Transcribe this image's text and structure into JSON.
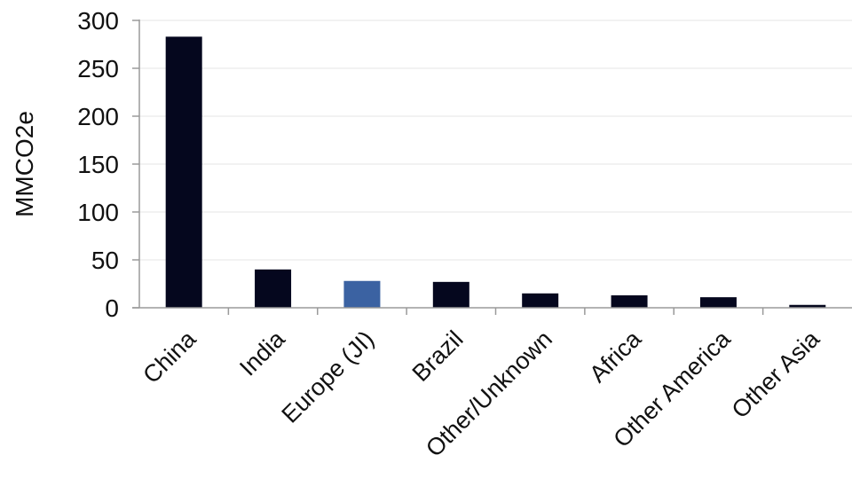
{
  "chart_data": {
    "type": "bar",
    "title": "",
    "xlabel": "",
    "ylabel": "MMCO2e",
    "ylim": [
      0,
      300
    ],
    "yticks": [
      0,
      50,
      100,
      150,
      200,
      250,
      300
    ],
    "grid": true,
    "legend": "none",
    "categories": [
      "China",
      "India",
      "Europe (JI)",
      "Brazil",
      "Other/Unknown",
      "Africa",
      "Other America",
      "Other Asia"
    ],
    "values": [
      283,
      40,
      28,
      27,
      15,
      13,
      11,
      3
    ],
    "colors": {
      "default_bar": "#05071e",
      "highlight_bar": "#3b62a2",
      "highlight_category": "Europe (JI)",
      "axis": "#9a9a9a",
      "grid": "#e6e6e6",
      "text": "#111111"
    }
  }
}
